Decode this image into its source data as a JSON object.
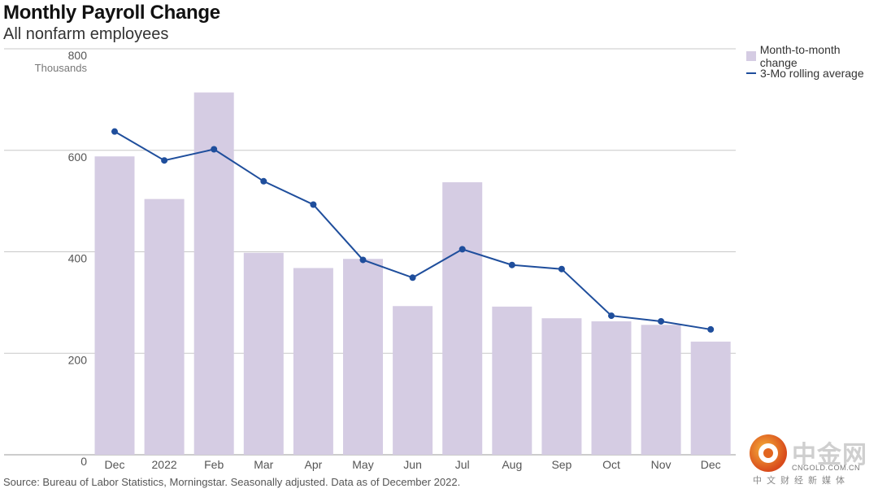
{
  "header": {
    "title": "Monthly Payroll Change",
    "subtitle": "All nonfarm employees"
  },
  "legend": {
    "bar_label": "Month-to-month change",
    "line_label": "3-Mo rolling average"
  },
  "source": "Source: Bureau of Labor Statistics, Morningstar. Seasonally adjusted. Data as of December 2022.",
  "watermark": {
    "name_cn": "中金网",
    "url": "CNGOLD.COM.CN",
    "tagline": "中文财经新媒体"
  },
  "colors": {
    "bar": "#d5cce3",
    "line": "#1f4e9c",
    "grid": "#c8c8c8",
    "axis_text": "#555555"
  },
  "chart_data": {
    "type": "bar",
    "categories": [
      "Dec",
      "2022",
      "Feb",
      "Mar",
      "Apr",
      "May",
      "Jun",
      "Jul",
      "Aug",
      "Sep",
      "Oct",
      "Nov",
      "Dec"
    ],
    "series": [
      {
        "name": "Month-to-month change",
        "type": "bar",
        "values": [
          588,
          504,
          714,
          398,
          368,
          386,
          293,
          537,
          292,
          269,
          263,
          256,
          223
        ]
      },
      {
        "name": "3-Mo rolling average",
        "type": "line",
        "values": [
          637,
          580,
          602,
          539,
          493,
          384,
          349,
          405,
          374,
          366,
          274,
          263,
          247
        ]
      }
    ],
    "yunit": "Thousands",
    "yticks": [
      0,
      200,
      400,
      600,
      800
    ],
    "ylim": [
      0,
      800
    ],
    "grid": true,
    "legend_position": "right"
  }
}
